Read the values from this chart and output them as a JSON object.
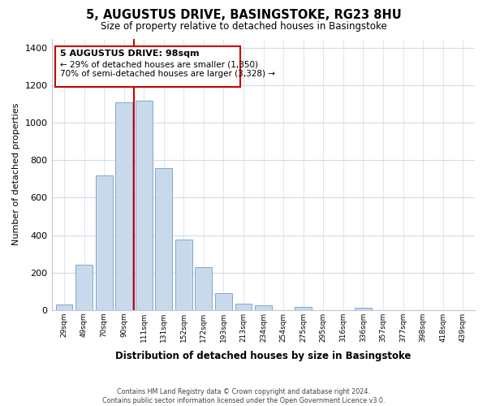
{
  "title": "5, AUGUSTUS DRIVE, BASINGSTOKE, RG23 8HU",
  "subtitle": "Size of property relative to detached houses in Basingstoke",
  "xlabel": "Distribution of detached houses by size in Basingstoke",
  "ylabel": "Number of detached properties",
  "bar_labels": [
    "29sqm",
    "49sqm",
    "70sqm",
    "90sqm",
    "111sqm",
    "131sqm",
    "152sqm",
    "172sqm",
    "193sqm",
    "213sqm",
    "234sqm",
    "254sqm",
    "275sqm",
    "295sqm",
    "316sqm",
    "336sqm",
    "357sqm",
    "377sqm",
    "398sqm",
    "418sqm",
    "439sqm"
  ],
  "bar_values": [
    30,
    240,
    720,
    1110,
    1120,
    760,
    375,
    230,
    90,
    35,
    25,
    0,
    15,
    0,
    0,
    10,
    0,
    0,
    0,
    0,
    0
  ],
  "bar_color": "#c9d9ec",
  "bar_edge_color": "#7fa8cc",
  "vline_color": "#cc0000",
  "vline_x_index": 3.5,
  "ylim": [
    0,
    1450
  ],
  "yticks": [
    0,
    200,
    400,
    600,
    800,
    1000,
    1200,
    1400
  ],
  "annotation_title": "5 AUGUSTUS DRIVE: 98sqm",
  "annotation_line1": "← 29% of detached houses are smaller (1,350)",
  "annotation_line2": "70% of semi-detached houses are larger (3,328) →",
  "annotation_box_color": "#ffffff",
  "annotation_box_edge": "#cc0000",
  "footer_line1": "Contains HM Land Registry data © Crown copyright and database right 2024.",
  "footer_line2": "Contains public sector information licensed under the Open Government Licence v3.0.",
  "background_color": "#ffffff",
  "grid_color": "#d0dce8",
  "spine_color": "#c0c8d8"
}
